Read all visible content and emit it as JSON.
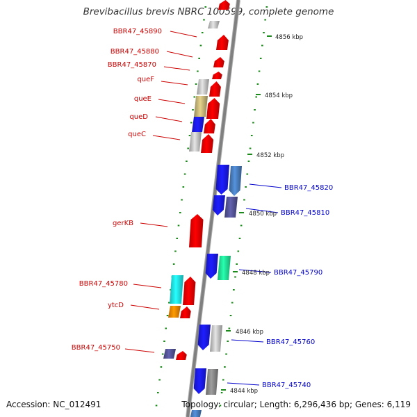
{
  "title": "Brevibacillus brevis NBRC 100599, complete genome",
  "accession": "Accession: NC_012491",
  "topology": "Topology: circular; Length: 6,296,436 bp; Genes: 6,119",
  "colors": {
    "backbone": "#808080",
    "tick": "#1a8a1a",
    "label_left": "#cc0000",
    "label_right": "#0000cc",
    "red": "#ff0000",
    "blue": "#1a1aff",
    "steelblue": "#4a7fc0",
    "slate": "#555599",
    "gray": "#c8c8c8",
    "darkgray": "#8a8a8a",
    "olive": "#c8b87a",
    "cyan": "#22eeee",
    "green": "#22ee99",
    "orange": "#ff8800"
  },
  "kbp_markers": [
    "4856 kbp",
    "4854 kbp",
    "4852 kbp",
    "4850 kbp",
    "4848 kbp",
    "4846 kbp",
    "4844 kbp"
  ],
  "genes_left": [
    {
      "name": "BBR47_45890",
      "color": "red"
    },
    {
      "name": "BBR47_45880",
      "color": "red"
    },
    {
      "name": "BBR47_45870",
      "color": "red"
    },
    {
      "name": "queF",
      "color": "red"
    },
    {
      "name": "queE",
      "color": "red"
    },
    {
      "name": "queD",
      "color": "red"
    },
    {
      "name": "queC",
      "color": "red"
    },
    {
      "name": "gerKB",
      "color": "red"
    },
    {
      "name": "BBR47_45780",
      "color": "red"
    },
    {
      "name": "ytcD",
      "color": "red"
    },
    {
      "name": "BBR47_45750",
      "color": "red"
    }
  ],
  "genes_right": [
    {
      "name": "BBR47_45820",
      "color": "blue"
    },
    {
      "name": "BBR47_45810",
      "color": "blue"
    },
    {
      "name": "BBR47_45790",
      "color": "blue"
    },
    {
      "name": "BBR47_45760",
      "color": "blue"
    },
    {
      "name": "BBR47_45740",
      "color": "blue"
    }
  ]
}
